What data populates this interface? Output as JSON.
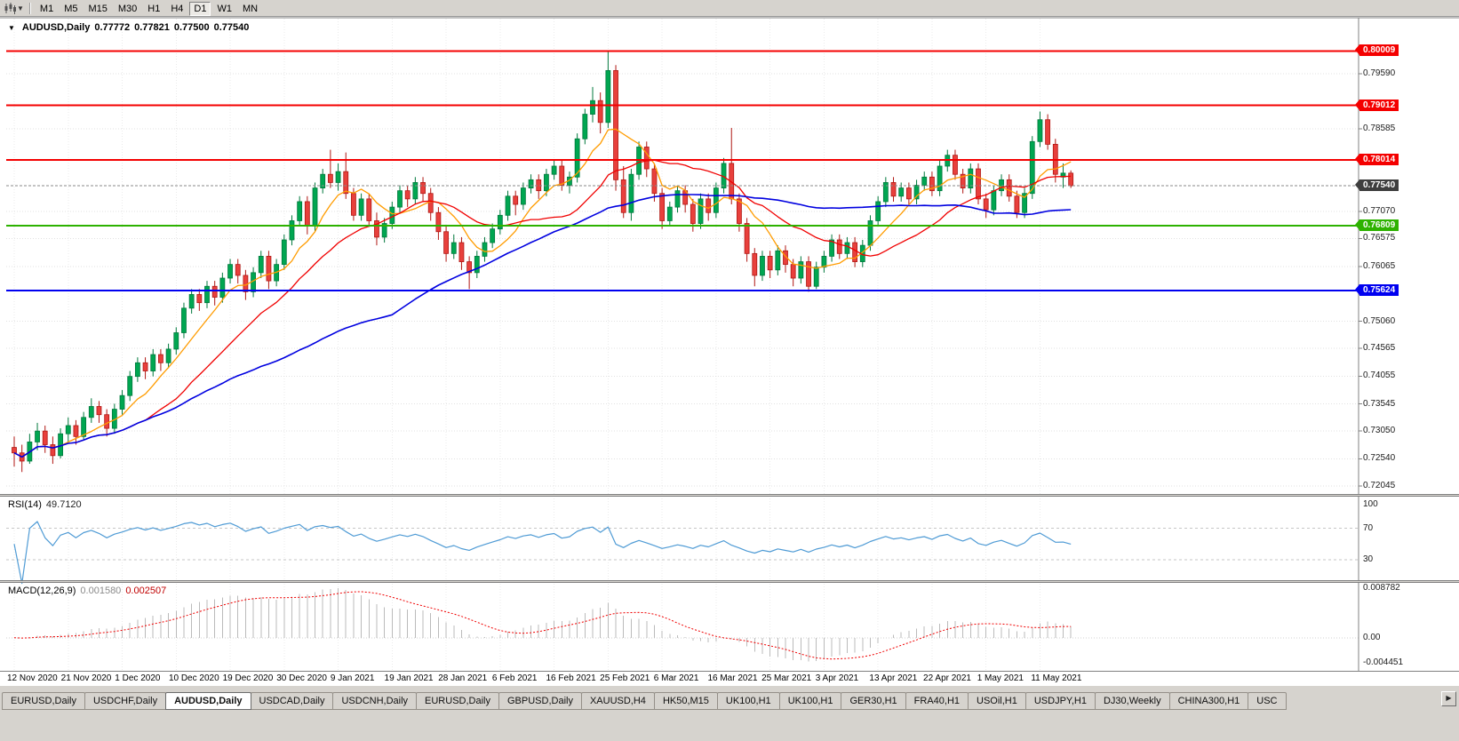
{
  "toolbar": {
    "chart_type_icon": "candlestick-chart-icon",
    "dropdown_icon": "caret-down-icon",
    "timeframes": [
      "M1",
      "M5",
      "M15",
      "M30",
      "H1",
      "H4",
      "D1",
      "W1",
      "MN"
    ],
    "active_timeframe": "D1"
  },
  "chart_header": {
    "collapse_icon": "triangle-down-icon",
    "symbol_period": "AUDUSD,Daily",
    "open": "0.77772",
    "high": "0.77821",
    "low": "0.77500",
    "close": "0.77540"
  },
  "chart_data": {
    "type": "candlestick",
    "symbol": "AUDUSD",
    "timeframe": "Daily",
    "y_range": [
      0.7193,
      0.806
    ],
    "y_axis_ticks": [
      "0.79590",
      "0.78585",
      "0.77070",
      "0.76575",
      "0.76065",
      "0.75060",
      "0.74565",
      "0.74055",
      "0.73545",
      "0.73050",
      "0.72540",
      "0.72045"
    ],
    "x_axis_labels": [
      "12 Nov 2020",
      "21 Nov 2020",
      "1 Dec 2020",
      "10 Dec 2020",
      "19 Dec 2020",
      "30 Dec 2020",
      "9 Jan 2021",
      "19 Jan 2021",
      "28 Jan 2021",
      "6 Feb 2021",
      "16 Feb 2021",
      "25 Feb 2021",
      "6 Mar 2021",
      "16 Mar 2021",
      "25 Mar 2021",
      "3 Apr 2021",
      "13 Apr 2021",
      "22 Apr 2021",
      "1 May 2021",
      "11 May 2021"
    ],
    "levels": [
      {
        "price": 0.80009,
        "label": "0.80009",
        "color": "#F40000"
      },
      {
        "price": 0.79012,
        "label": "0.79012",
        "color": "#F40000"
      },
      {
        "price": 0.78014,
        "label": "0.78014",
        "color": "#F40000"
      },
      {
        "price": 0.76809,
        "label": "0.76809",
        "color": "#2DB200"
      },
      {
        "price": 0.75624,
        "label": "0.75624",
        "color": "#0000F0"
      }
    ],
    "current_price": {
      "price": 0.7754,
      "label": "0.77540",
      "color": "#3E3E3E"
    },
    "candle_colors": {
      "bull": "#00A651",
      "bull_edge": "#00783C",
      "bear": "#E8403C",
      "bear_edge": "#B01713"
    },
    "moving_averages": [
      {
        "period": 7,
        "color": "#FF9C00"
      },
      {
        "period": 18,
        "color": "#F00000"
      },
      {
        "period": 50,
        "color": "#0000E0"
      }
    ],
    "candles": [
      [
        0.7275,
        0.7295,
        0.724,
        0.7265
      ],
      [
        0.7265,
        0.728,
        0.723,
        0.725
      ],
      [
        0.725,
        0.73,
        0.7245,
        0.7285
      ],
      [
        0.7285,
        0.732,
        0.727,
        0.7305
      ],
      [
        0.7305,
        0.7315,
        0.7265,
        0.728
      ],
      [
        0.728,
        0.7295,
        0.7245,
        0.726
      ],
      [
        0.726,
        0.731,
        0.7255,
        0.73
      ],
      [
        0.73,
        0.733,
        0.7285,
        0.7315
      ],
      [
        0.7315,
        0.7325,
        0.728,
        0.7295
      ],
      [
        0.7295,
        0.734,
        0.729,
        0.733
      ],
      [
        0.733,
        0.7365,
        0.732,
        0.735
      ],
      [
        0.735,
        0.736,
        0.732,
        0.7335
      ],
      [
        0.7335,
        0.7345,
        0.7295,
        0.731
      ],
      [
        0.731,
        0.7355,
        0.73,
        0.7345
      ],
      [
        0.7345,
        0.738,
        0.7335,
        0.737
      ],
      [
        0.737,
        0.7415,
        0.736,
        0.7405
      ],
      [
        0.7405,
        0.744,
        0.7395,
        0.743
      ],
      [
        0.743,
        0.744,
        0.74,
        0.7415
      ],
      [
        0.7415,
        0.7455,
        0.7405,
        0.7445
      ],
      [
        0.7445,
        0.7455,
        0.7415,
        0.743
      ],
      [
        0.743,
        0.7465,
        0.742,
        0.7455
      ],
      [
        0.7455,
        0.7495,
        0.7445,
        0.7485
      ],
      [
        0.7485,
        0.754,
        0.7475,
        0.753
      ],
      [
        0.753,
        0.7565,
        0.752,
        0.7555
      ],
      [
        0.7555,
        0.7565,
        0.7525,
        0.754
      ],
      [
        0.754,
        0.758,
        0.753,
        0.757
      ],
      [
        0.757,
        0.758,
        0.7535,
        0.755
      ],
      [
        0.755,
        0.7595,
        0.754,
        0.7585
      ],
      [
        0.7585,
        0.762,
        0.7575,
        0.761
      ],
      [
        0.761,
        0.762,
        0.7575,
        0.759
      ],
      [
        0.759,
        0.76,
        0.7545,
        0.756
      ],
      [
        0.756,
        0.7605,
        0.755,
        0.7595
      ],
      [
        0.7595,
        0.7635,
        0.7585,
        0.7625
      ],
      [
        0.7625,
        0.7635,
        0.7565,
        0.758
      ],
      [
        0.758,
        0.762,
        0.757,
        0.761
      ],
      [
        0.761,
        0.7665,
        0.76,
        0.7655
      ],
      [
        0.7655,
        0.77,
        0.7645,
        0.769
      ],
      [
        0.769,
        0.7735,
        0.768,
        0.7725
      ],
      [
        0.7725,
        0.7735,
        0.7665,
        0.768
      ],
      [
        0.768,
        0.776,
        0.767,
        0.775
      ],
      [
        0.775,
        0.7785,
        0.774,
        0.7775
      ],
      [
        0.7775,
        0.782,
        0.775,
        0.776
      ],
      [
        0.776,
        0.7795,
        0.7745,
        0.778
      ],
      [
        0.778,
        0.7815,
        0.773,
        0.774
      ],
      [
        0.774,
        0.775,
        0.769,
        0.77
      ],
      [
        0.77,
        0.774,
        0.769,
        0.773
      ],
      [
        0.773,
        0.774,
        0.768,
        0.769
      ],
      [
        0.769,
        0.7705,
        0.7645,
        0.766
      ],
      [
        0.766,
        0.7695,
        0.765,
        0.7685
      ],
      [
        0.7685,
        0.7725,
        0.7675,
        0.7715
      ],
      [
        0.7715,
        0.7755,
        0.7705,
        0.7745
      ],
      [
        0.7745,
        0.7755,
        0.7715,
        0.773
      ],
      [
        0.773,
        0.777,
        0.772,
        0.776
      ],
      [
        0.776,
        0.777,
        0.7725,
        0.774
      ],
      [
        0.774,
        0.775,
        0.769,
        0.7705
      ],
      [
        0.7705,
        0.7715,
        0.7655,
        0.767
      ],
      [
        0.767,
        0.768,
        0.7615,
        0.763
      ],
      [
        0.763,
        0.7665,
        0.762,
        0.765
      ],
      [
        0.765,
        0.766,
        0.76,
        0.7615
      ],
      [
        0.7615,
        0.7625,
        0.7565,
        0.7595
      ],
      [
        0.7595,
        0.7635,
        0.7585,
        0.7625
      ],
      [
        0.7625,
        0.766,
        0.7615,
        0.765
      ],
      [
        0.765,
        0.7685,
        0.764,
        0.7675
      ],
      [
        0.7675,
        0.771,
        0.7665,
        0.77
      ],
      [
        0.77,
        0.7745,
        0.769,
        0.7735
      ],
      [
        0.7735,
        0.7745,
        0.77,
        0.772
      ],
      [
        0.772,
        0.776,
        0.771,
        0.775
      ],
      [
        0.775,
        0.7775,
        0.774,
        0.7765
      ],
      [
        0.7765,
        0.7775,
        0.773,
        0.7745
      ],
      [
        0.7745,
        0.7785,
        0.7735,
        0.7775
      ],
      [
        0.7775,
        0.78,
        0.7765,
        0.779
      ],
      [
        0.779,
        0.78,
        0.7745,
        0.7755
      ],
      [
        0.7755,
        0.778,
        0.774,
        0.777
      ],
      [
        0.777,
        0.785,
        0.776,
        0.784
      ],
      [
        0.784,
        0.7895,
        0.783,
        0.7885
      ],
      [
        0.7885,
        0.7935,
        0.787,
        0.791
      ],
      [
        0.791,
        0.7925,
        0.785,
        0.787
      ],
      [
        0.787,
        0.80009,
        0.786,
        0.7965
      ],
      [
        0.7965,
        0.7975,
        0.7745,
        0.7765
      ],
      [
        0.7765,
        0.779,
        0.7695,
        0.7705
      ],
      [
        0.7705,
        0.7785,
        0.769,
        0.7775
      ],
      [
        0.7775,
        0.7835,
        0.7765,
        0.7825
      ],
      [
        0.7825,
        0.7835,
        0.777,
        0.7785
      ],
      [
        0.7785,
        0.7795,
        0.7725,
        0.774
      ],
      [
        0.774,
        0.775,
        0.7675,
        0.769
      ],
      [
        0.769,
        0.7725,
        0.768,
        0.7715
      ],
      [
        0.7715,
        0.7755,
        0.7705,
        0.7745
      ],
      [
        0.7745,
        0.7755,
        0.7705,
        0.772
      ],
      [
        0.772,
        0.773,
        0.767,
        0.7685
      ],
      [
        0.7685,
        0.774,
        0.7675,
        0.773
      ],
      [
        0.773,
        0.774,
        0.769,
        0.7705
      ],
      [
        0.7705,
        0.776,
        0.7695,
        0.775
      ],
      [
        0.775,
        0.7805,
        0.774,
        0.7795
      ],
      [
        0.7795,
        0.786,
        0.772,
        0.773
      ],
      [
        0.773,
        0.774,
        0.767,
        0.7685
      ],
      [
        0.7685,
        0.7695,
        0.7615,
        0.763
      ],
      [
        0.763,
        0.764,
        0.757,
        0.759
      ],
      [
        0.759,
        0.7635,
        0.758,
        0.7625
      ],
      [
        0.7625,
        0.7635,
        0.7585,
        0.76
      ],
      [
        0.76,
        0.7645,
        0.759,
        0.7635
      ],
      [
        0.7635,
        0.7645,
        0.7595,
        0.761
      ],
      [
        0.761,
        0.762,
        0.757,
        0.7585
      ],
      [
        0.7585,
        0.7625,
        0.7575,
        0.7615
      ],
      [
        0.7615,
        0.7625,
        0.756,
        0.757
      ],
      [
        0.757,
        0.7615,
        0.7565,
        0.7605
      ],
      [
        0.7605,
        0.7635,
        0.7595,
        0.7625
      ],
      [
        0.7625,
        0.7665,
        0.7615,
        0.7655
      ],
      [
        0.7655,
        0.7665,
        0.762,
        0.763
      ],
      [
        0.763,
        0.766,
        0.762,
        0.765
      ],
      [
        0.765,
        0.766,
        0.7605,
        0.7615
      ],
      [
        0.7615,
        0.7655,
        0.7605,
        0.7645
      ],
      [
        0.7645,
        0.77,
        0.7635,
        0.769
      ],
      [
        0.769,
        0.7735,
        0.768,
        0.7725
      ],
      [
        0.7725,
        0.777,
        0.7715,
        0.776
      ],
      [
        0.776,
        0.777,
        0.7725,
        0.7735
      ],
      [
        0.7735,
        0.776,
        0.7725,
        0.775
      ],
      [
        0.775,
        0.776,
        0.772,
        0.773
      ],
      [
        0.773,
        0.7765,
        0.772,
        0.7755
      ],
      [
        0.7755,
        0.778,
        0.7745,
        0.777
      ],
      [
        0.777,
        0.778,
        0.7735,
        0.7745
      ],
      [
        0.7745,
        0.78,
        0.7735,
        0.779
      ],
      [
        0.779,
        0.782,
        0.778,
        0.781
      ],
      [
        0.781,
        0.782,
        0.7765,
        0.7775
      ],
      [
        0.7775,
        0.7785,
        0.774,
        0.775
      ],
      [
        0.775,
        0.7795,
        0.774,
        0.7785
      ],
      [
        0.7785,
        0.7795,
        0.772,
        0.773
      ],
      [
        0.773,
        0.774,
        0.7695,
        0.771
      ],
      [
        0.771,
        0.7755,
        0.77,
        0.7745
      ],
      [
        0.7745,
        0.7775,
        0.7735,
        0.7765
      ],
      [
        0.7765,
        0.7775,
        0.7725,
        0.7735
      ],
      [
        0.7735,
        0.7745,
        0.7695,
        0.7705
      ],
      [
        0.7705,
        0.775,
        0.7695,
        0.774
      ],
      [
        0.774,
        0.7845,
        0.773,
        0.7835
      ],
      [
        0.7835,
        0.789,
        0.7825,
        0.7875
      ],
      [
        0.7875,
        0.7885,
        0.782,
        0.783
      ],
      [
        0.783,
        0.784,
        0.776,
        0.7775
      ],
      [
        0.777,
        0.7795,
        0.775,
        0.77772
      ],
      [
        0.77772,
        0.77821,
        0.775,
        0.7754
      ]
    ],
    "rsi": {
      "label": "RSI(14)",
      "value": "49.7120",
      "period": 14,
      "color": "#4F9BD5",
      "scale_ticks": [
        "100",
        "70",
        "30"
      ],
      "level_lines": [
        70,
        30
      ],
      "range": [
        0,
        100
      ]
    },
    "macd": {
      "label": "MACD(12,26,9)",
      "fast": 12,
      "slow": 26,
      "signal": 9,
      "value_macd": "0.001580",
      "value_signal": "0.002507",
      "scale_ticks": [
        "0.008782",
        "0.00",
        "-0.004451"
      ],
      "histogram_color": "#BBBBBB",
      "signal_color": "#F00000"
    }
  },
  "tabs": {
    "items": [
      {
        "label": "EURUSD,Daily"
      },
      {
        "label": "USDCHF,Daily"
      },
      {
        "label": "AUDUSD,Daily",
        "active": true
      },
      {
        "label": "USDCAD,Daily"
      },
      {
        "label": "USDCNH,Daily"
      },
      {
        "label": "EURUSD,Daily"
      },
      {
        "label": "GBPUSD,Daily"
      },
      {
        "label": "XAUUSD,H4"
      },
      {
        "label": "HK50,M15"
      },
      {
        "label": "UK100,H1"
      },
      {
        "label": "UK100,H1"
      },
      {
        "label": "GER30,H1"
      },
      {
        "label": "FRA40,H1"
      },
      {
        "label": "USOil,H1"
      },
      {
        "label": "USDJPY,H1"
      },
      {
        "label": "DJ30,Weekly"
      },
      {
        "label": "CHINA300,H1"
      },
      {
        "label": "USC"
      }
    ],
    "scroll_right_icon": "▶"
  }
}
